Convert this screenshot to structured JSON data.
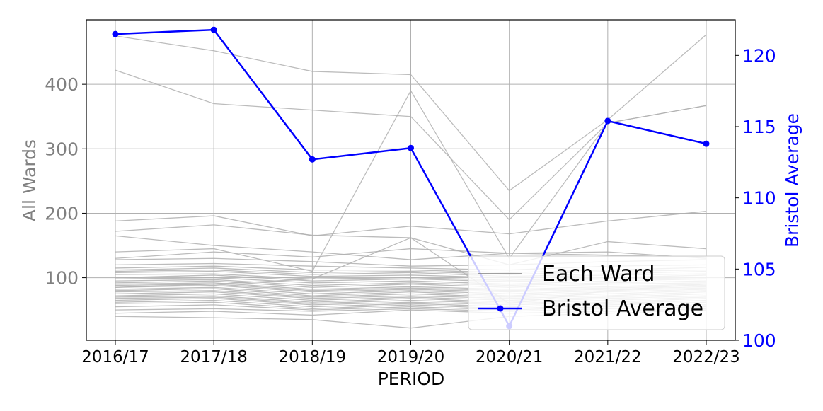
{
  "chart_data": {
    "type": "line",
    "title": "",
    "xlabel": "PERIOD",
    "ylabel_left": "All Wards",
    "ylabel_right": "Bristol Average",
    "x": [
      "2016/17",
      "2017/18",
      "2018/19",
      "2019/20",
      "2020/21",
      "2021/22",
      "2022/23"
    ],
    "ylim_left": [
      3,
      500
    ],
    "yticks_left": [
      100,
      200,
      300,
      400
    ],
    "ylim_right": [
      100,
      122.5
    ],
    "yticks_right": [
      100,
      105,
      110,
      115,
      120
    ],
    "grid": true,
    "legend_position": "bottom-right",
    "legend": [
      {
        "label": "Each Ward",
        "color": "#808080"
      },
      {
        "label": "Bristol Average",
        "color": "#0000ff"
      }
    ],
    "colors": {
      "wards": "#b0b0b0",
      "average": "#0000ff",
      "left_axis": "#808080",
      "right_axis": "#0000ff"
    },
    "wards": [
      [
        475,
        452,
        420,
        415,
        235,
        345,
        477
      ],
      [
        422,
        370,
        360,
        350,
        190,
        340,
        367
      ],
      [
        140,
        145,
        110,
        390,
        130,
        340,
        367
      ],
      [
        188,
        196,
        165,
        180,
        168,
        188,
        203
      ],
      [
        172,
        182,
        166,
        162,
        120,
        156,
        145
      ],
      [
        165,
        150,
        140,
        128,
        138,
        140,
        130
      ],
      [
        130,
        140,
        132,
        145,
        138,
        135,
        132
      ],
      [
        128,
        130,
        125,
        118,
        120,
        125,
        128
      ],
      [
        120,
        122,
        118,
        115,
        112,
        118,
        120
      ],
      [
        115,
        118,
        112,
        112,
        108,
        112,
        116
      ],
      [
        112,
        115,
        108,
        110,
        105,
        110,
        112
      ],
      [
        110,
        112,
        105,
        108,
        102,
        106,
        110
      ],
      [
        108,
        110,
        102,
        104,
        100,
        104,
        106
      ],
      [
        105,
        106,
        98,
        100,
        96,
        100,
        104
      ],
      [
        100,
        104,
        95,
        98,
        94,
        98,
        100
      ],
      [
        98,
        100,
        92,
        95,
        90,
        95,
        98
      ],
      [
        95,
        97,
        88,
        92,
        88,
        92,
        95
      ],
      [
        92,
        95,
        85,
        90,
        85,
        90,
        92
      ],
      [
        90,
        92,
        82,
        86,
        82,
        86,
        90
      ],
      [
        88,
        90,
        80,
        84,
        80,
        84,
        88
      ],
      [
        85,
        88,
        78,
        82,
        78,
        82,
        86
      ],
      [
        82,
        85,
        75,
        80,
        75,
        80,
        84
      ],
      [
        80,
        83,
        72,
        78,
        72,
        78,
        82
      ],
      [
        78,
        80,
        70,
        75,
        70,
        75,
        80
      ],
      [
        75,
        78,
        68,
        72,
        68,
        72,
        78
      ],
      [
        72,
        75,
        65,
        70,
        65,
        70,
        75
      ],
      [
        70,
        72,
        62,
        68,
        62,
        68,
        72
      ],
      [
        68,
        70,
        60,
        65,
        60,
        65,
        70
      ],
      [
        65,
        68,
        58,
        62,
        58,
        62,
        68
      ],
      [
        62,
        65,
        55,
        60,
        55,
        60,
        65
      ],
      [
        60,
        62,
        52,
        58,
        52,
        58,
        62
      ],
      [
        55,
        58,
        50,
        55,
        50,
        55,
        58
      ],
      [
        50,
        52,
        48,
        52,
        48,
        52,
        55
      ],
      [
        45,
        48,
        42,
        50,
        45,
        48,
        52
      ],
      [
        40,
        38,
        35,
        22,
        40,
        45,
        50
      ],
      [
        85,
        90,
        98,
        162,
        60,
        80,
        90
      ]
    ],
    "average": [
      121.5,
      121.8,
      112.7,
      113.5,
      101.0,
      115.4,
      113.8
    ]
  }
}
